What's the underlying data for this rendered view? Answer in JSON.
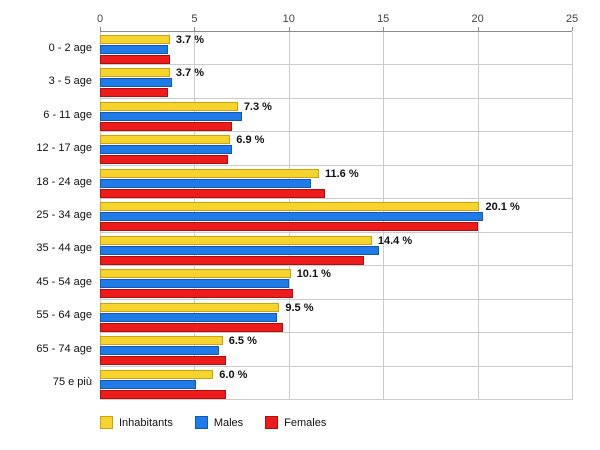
{
  "chart_data": {
    "type": "bar",
    "orientation": "horizontal",
    "title": "",
    "xlabel": "",
    "ylabel": "",
    "xlim": [
      0,
      25
    ],
    "x_ticks": [
      0,
      5,
      10,
      15,
      20,
      25
    ],
    "grid": true,
    "legend_position": "bottom",
    "categories": [
      "0 - 2 age",
      "3 - 5 age",
      "6 - 11 age",
      "12 - 17 age",
      "18 - 24 age",
      "25 - 34 age",
      "35 - 44 age",
      "45 - 54 age",
      "55 - 64 age",
      "65 - 74 age",
      "75 e più"
    ],
    "series": [
      {
        "name": "Inhabitants",
        "color": "#f6d32d",
        "border": "#c7a50b",
        "values": [
          3.7,
          3.7,
          7.3,
          6.9,
          11.6,
          20.1,
          14.4,
          10.1,
          9.5,
          6.5,
          6.0
        ]
      },
      {
        "name": "Males",
        "color": "#1e7be8",
        "border": "#1159b3",
        "values": [
          3.6,
          3.8,
          7.5,
          7.0,
          11.2,
          20.3,
          14.8,
          10.0,
          9.4,
          6.3,
          5.1
        ]
      },
      {
        "name": "Females",
        "color": "#ee1b1b",
        "border": "#ad0f0f",
        "values": [
          3.7,
          3.6,
          7.0,
          6.8,
          11.9,
          20.0,
          14.0,
          10.2,
          9.7,
          6.7,
          6.7
        ]
      }
    ],
    "data_labels": [
      "3.7 %",
      "3.7 %",
      "7.3 %",
      "6.9 %",
      "11.6 %",
      "20.1 %",
      "14.4 %",
      "10.1 %",
      "9.5 %",
      "6.5 %",
      "6.0 %"
    ],
    "colors": {
      "gridline": "#cccccc",
      "axis_line": "#8c8c8c",
      "tick_label": "#444444",
      "background": "#ffffff"
    }
  }
}
